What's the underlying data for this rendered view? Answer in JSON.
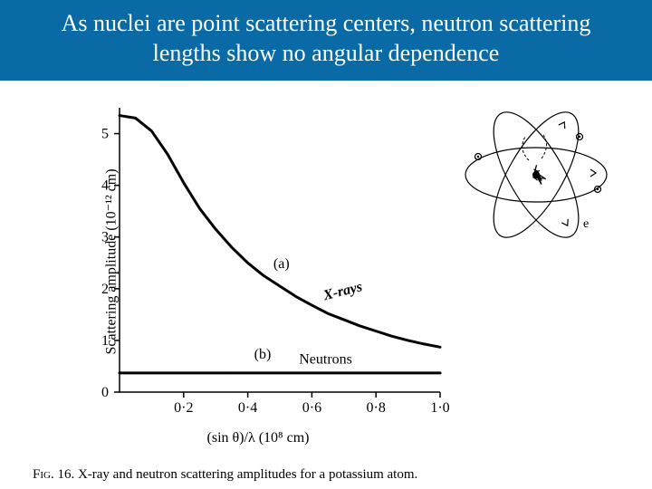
{
  "title": "As nuclei are point scattering centers, neutron scattering lengths show no angular dependence",
  "caption_prefix": "Fig. 16.",
  "caption_text": "X-ray and neutron scattering amplitudes for a potassium atom.",
  "chart": {
    "type": "line",
    "ylabel": "Scattering amplitude (10⁻¹² cm)",
    "xlabel": "(sin θ)/λ (10⁸ cm)",
    "xlim": [
      0.0,
      1.0
    ],
    "ylim": [
      0,
      5.5
    ],
    "xticks": [
      0.2,
      0.4,
      0.6,
      0.8,
      1.0
    ],
    "xtick_labels": [
      "0·2",
      "0·4",
      "0·6",
      "0·8",
      "1·0"
    ],
    "yticks": [
      0,
      1,
      2,
      3,
      4,
      5
    ],
    "axis_color": "#000000",
    "line_color": "#000000",
    "line_width": 3,
    "background": "#ffffff",
    "series": [
      {
        "name": "X-rays",
        "label": "X-rays",
        "annotation": "(a)",
        "points": [
          {
            "x": 0.0,
            "y": 5.35
          },
          {
            "x": 0.05,
            "y": 5.3
          },
          {
            "x": 0.1,
            "y": 5.05
          },
          {
            "x": 0.15,
            "y": 4.6
          },
          {
            "x": 0.2,
            "y": 4.05
          },
          {
            "x": 0.25,
            "y": 3.55
          },
          {
            "x": 0.3,
            "y": 3.15
          },
          {
            "x": 0.35,
            "y": 2.8
          },
          {
            "x": 0.4,
            "y": 2.5
          },
          {
            "x": 0.45,
            "y": 2.25
          },
          {
            "x": 0.5,
            "y": 2.05
          },
          {
            "x": 0.55,
            "y": 1.85
          },
          {
            "x": 0.6,
            "y": 1.68
          },
          {
            "x": 0.65,
            "y": 1.52
          },
          {
            "x": 0.7,
            "y": 1.4
          },
          {
            "x": 0.75,
            "y": 1.28
          },
          {
            "x": 0.8,
            "y": 1.18
          },
          {
            "x": 0.85,
            "y": 1.08
          },
          {
            "x": 0.9,
            "y": 1.0
          },
          {
            "x": 0.95,
            "y": 0.93
          },
          {
            "x": 1.0,
            "y": 0.87
          }
        ]
      },
      {
        "name": "Neutrons",
        "label": "Neutrons",
        "annotation": "(b)",
        "points": [
          {
            "x": 0.0,
            "y": 0.37
          },
          {
            "x": 1.0,
            "y": 0.37
          }
        ]
      }
    ]
  },
  "atom": {
    "orbit_color": "#000000",
    "orbit_width": 1.2,
    "electron_label": "e"
  }
}
